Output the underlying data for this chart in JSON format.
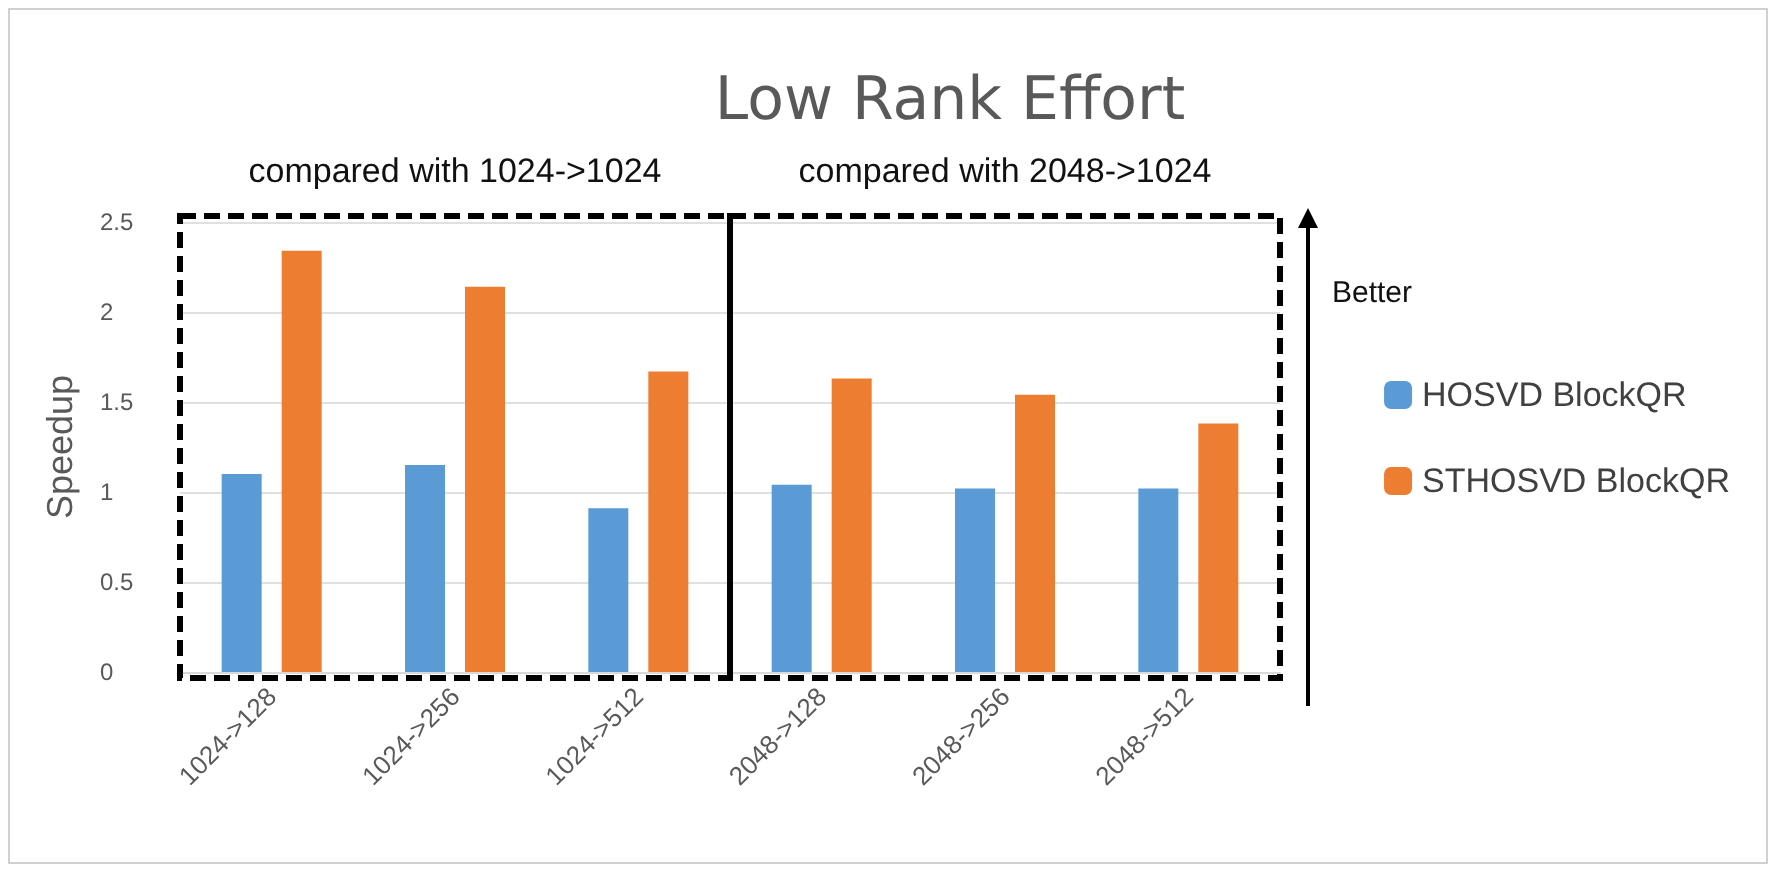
{
  "chart_data": {
    "type": "bar",
    "title": "Low Rank Effort",
    "ylabel": "Speedup",
    "categories": [
      "1024->128",
      "1024->256",
      "1024->512",
      "2048->128",
      "2048->256",
      "2048->512"
    ],
    "series": [
      {
        "name": "HOSVD BlockQR",
        "color": "#5b9bd5",
        "values": [
          1.1,
          1.15,
          0.91,
          1.04,
          1.02,
          1.02
        ]
      },
      {
        "name": "STHOSVD BlockQR",
        "color": "#ed7d31",
        "values": [
          2.34,
          2.14,
          1.67,
          1.63,
          1.54,
          1.38
        ]
      }
    ],
    "ylim": [
      0,
      2.5
    ],
    "yticks": [
      0,
      0.5,
      1,
      1.5,
      2,
      2.5
    ],
    "grid": "y",
    "legend": "right",
    "annotations": [
      "compared with 1024->1024",
      "compared with 2048->1024",
      "Better"
    ]
  }
}
